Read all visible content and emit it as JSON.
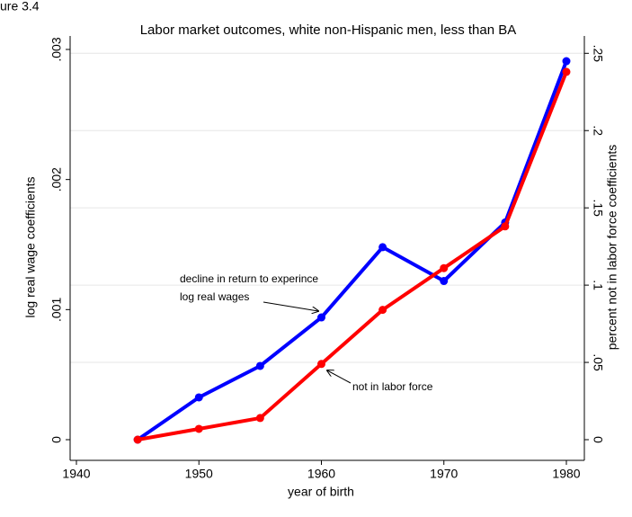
{
  "corner_text": "ure 3.4",
  "chart_data": {
    "type": "line",
    "title": "Labor market outcomes, white non-Hispanic men, less than BA",
    "xlabel": "year of birth",
    "ylabel": "log real wage coefficients",
    "y2label": "percent not in labor force coefficients",
    "x": [
      1945,
      1950,
      1955,
      1960,
      1965,
      1970,
      1975,
      1980
    ],
    "series": [
      {
        "name": "log real wages",
        "color": "#0000ff",
        "values": [
          0,
          0.000325,
          0.000567,
          0.00094,
          0.00148,
          0.00122,
          0.00167,
          0.00291
        ]
      },
      {
        "name": "not in labor force",
        "color": "#ff0000",
        "axis": "y2",
        "values": [
          0,
          0.007,
          0.014,
          0.049,
          0.084,
          0.111,
          0.138,
          0.238
        ]
      }
    ],
    "xlim": [
      1940,
      1980
    ],
    "xticks": [
      1940,
      1950,
      1960,
      1970,
      1980
    ],
    "ylim": [
      0,
      0.003
    ],
    "yticks": [
      0,
      {
        "value": 0.001,
        "label": ".001"
      },
      {
        "value": 0.002,
        "label": ".002"
      },
      {
        "value": 0.003,
        "label": ".003"
      }
    ],
    "y2lim": [
      0,
      0.2525
    ],
    "y2ticks": [
      0,
      {
        "value": 0.05,
        "label": ".05"
      },
      {
        "value": 0.1,
        "label": ".1"
      },
      {
        "value": 0.15,
        "label": ".15"
      },
      {
        "value": 0.2,
        "label": ".2"
      },
      {
        "value": 0.25,
        "label": ".25"
      }
    ],
    "grid": true,
    "annotations": [
      "decline in return to experince",
      "log real wages",
      "not in labor force"
    ]
  }
}
